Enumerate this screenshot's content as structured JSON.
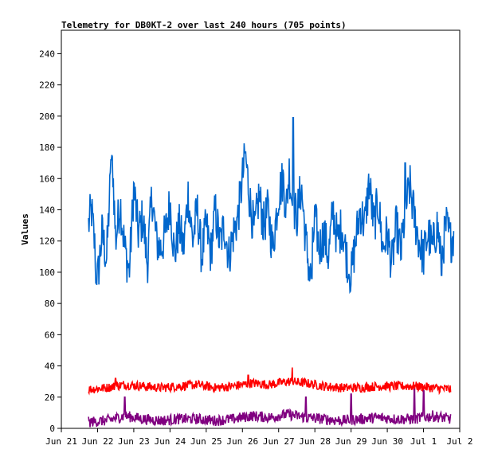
{
  "chart_data": {
    "type": "line",
    "title": "Telemetry for DB0KT-2 over last 240 hours (705 points)",
    "xlabel": "",
    "ylabel": "Values",
    "ylim": [
      0,
      255
    ],
    "xlim": [
      "Jun 21",
      "Jul 2"
    ],
    "x_ticks": [
      "Jun 21",
      "Jun 22",
      "Jun 23",
      "Jun 24",
      "Jun 25",
      "Jun 26",
      "Jun 27",
      "Jun 28",
      "Jun 29",
      "Jun 30",
      "Jul 1",
      "Jul 2"
    ],
    "y_ticks": [
      0,
      20,
      40,
      60,
      80,
      100,
      120,
      140,
      160,
      180,
      200,
      220,
      240
    ],
    "grid": false,
    "legend": "none",
    "series": [
      {
        "color": "#0066cc",
        "points": [
          [
            "Jun 21 18:00",
            130
          ],
          [
            "Jun 21 20:00",
            140
          ],
          [
            "Jun 22 00:00",
            95
          ],
          [
            "Jun 22 03:00",
            125
          ],
          [
            "Jun 22 06:00",
            108
          ],
          [
            "Jun 22 08:00",
            150
          ],
          [
            "Jun 22 10:00",
            170
          ],
          [
            "Jun 22 12:00",
            120
          ],
          [
            "Jun 22 15:00",
            145
          ],
          [
            "Jun 22 18:00",
            115
          ],
          [
            "Jun 22 21:00",
            100
          ],
          [
            "Jun 23 00:00",
            155
          ],
          [
            "Jun 23 03:00",
            125
          ],
          [
            "Jun 23 06:00",
            135
          ],
          [
            "Jun 23 09:00",
            105
          ],
          [
            "Jun 23 12:00",
            150
          ],
          [
            "Jun 23 15:00",
            120
          ],
          [
            "Jun 23 18:00",
            115
          ],
          [
            "Jun 23 21:00",
            125
          ],
          [
            "Jun 24 00:00",
            145
          ],
          [
            "Jun 24 03:00",
            110
          ],
          [
            "Jun 24 06:00",
            130
          ],
          [
            "Jun 24 09:00",
            115
          ],
          [
            "Jun 24 12:00",
            150
          ],
          [
            "Jun 24 15:00",
            120
          ],
          [
            "Jun 24 18:00",
            140
          ],
          [
            "Jun 24 21:00",
            110
          ],
          [
            "Jun 25 00:00",
            130
          ],
          [
            "Jun 25 03:00",
            112
          ],
          [
            "Jun 25 06:00",
            140
          ],
          [
            "Jun 25 09:00",
            118
          ],
          [
            "Jun 25 12:00",
            130
          ],
          [
            "Jun 25 15:00",
            110
          ],
          [
            "Jun 25 18:00",
            125
          ],
          [
            "Jun 25 21:00",
            135
          ],
          [
            "Jun 26 00:00",
            160
          ],
          [
            "Jun 26 02:00",
            175
          ],
          [
            "Jun 26 05:00",
            145
          ],
          [
            "Jun 26 08:00",
            125
          ],
          [
            "Jun 26 11:00",
            150
          ],
          [
            "Jun 26 14:00",
            130
          ],
          [
            "Jun 26 17:00",
            140
          ],
          [
            "Jun 26 20:00",
            115
          ],
          [
            "Jun 27 00:00",
            150
          ],
          [
            "Jun 27 03:00",
            160
          ],
          [
            "Jun 27 05:00",
            140
          ],
          [
            "Jun 27 07:00",
            165
          ],
          [
            "Jun 27 09:00",
            145
          ],
          [
            "Jun 27 12:00",
            135
          ],
          [
            "Jun 27 15:00",
            155
          ],
          [
            "Jun 27 18:00",
            120
          ],
          [
            "Jun 27 21:00",
            95
          ],
          [
            "Jun 28 00:00",
            135
          ],
          [
            "Jun 28 03:00",
            115
          ],
          [
            "Jun 28 06:00",
            125
          ],
          [
            "Jun 28 09:00",
            110
          ],
          [
            "Jun 28 12:00",
            140
          ],
          [
            "Jun 28 15:00",
            120
          ],
          [
            "Jun 28 18:00",
            130
          ],
          [
            "Jun 28 21:00",
            110
          ],
          [
            "Jun 29 00:00",
            97
          ],
          [
            "Jun 29 03:00",
            120
          ],
          [
            "Jun 29 06:00",
            140
          ],
          [
            "Jun 29 09:00",
            130
          ],
          [
            "Jun 29 12:00",
            158
          ],
          [
            "Jun 29 15:00",
            130
          ],
          [
            "Jun 29 18:00",
            145
          ],
          [
            "Jun 29 21:00",
            115
          ],
          [
            "Jun 30 00:00",
            125
          ],
          [
            "Jun 30 03:00",
            105
          ],
          [
            "Jun 30 06:00",
            130
          ],
          [
            "Jun 30 09:00",
            112
          ],
          [
            "Jun 30 12:00",
            140
          ],
          [
            "Jun 30 15:00",
            155
          ],
          [
            "Jun 30 18:00",
            135
          ],
          [
            "Jun 30 21:00",
            120
          ],
          [
            "Jul 1 00:00",
            110
          ],
          [
            "Jul 1 03:00",
            125
          ],
          [
            "Jul 1 06:00",
            115
          ],
          [
            "Jul 1 09:00",
            130
          ],
          [
            "Jul 1 12:00",
            110
          ],
          [
            "Jul 1 15:00",
            130
          ],
          [
            "Jul 1 18:00",
            120
          ],
          [
            "Jul 1 20:00",
            125
          ]
        ],
        "peaks": [
          [
            "Jun 21 23:00",
            93
          ],
          [
            "Jun 22 09:00",
            172
          ],
          [
            "Jun 26 02:00",
            177
          ],
          [
            "Jun 27 09:30",
            199
          ],
          [
            "Jun 27 22:00",
            96
          ],
          [
            "Jun 28 22:00",
            96
          ],
          [
            "Jun 30 12:00",
            170
          ],
          [
            "Jul 1 12:00",
            98
          ]
        ]
      },
      {
        "color": "#ff0000",
        "points": [
          [
            "Jun 21 18:00",
            25
          ],
          [
            "Jun 22 06:00",
            26
          ],
          [
            "Jun 22 18:00",
            28
          ],
          [
            "Jun 23 06:00",
            27
          ],
          [
            "Jun 23 18:00",
            26
          ],
          [
            "Jun 24 06:00",
            27
          ],
          [
            "Jun 24 18:00",
            28
          ],
          [
            "Jun 25 06:00",
            26
          ],
          [
            "Jun 25 18:00",
            27
          ],
          [
            "Jun 26 06:00",
            29
          ],
          [
            "Jun 26 18:00",
            28
          ],
          [
            "Jun 27 06:00",
            30
          ],
          [
            "Jun 27 18:00",
            29
          ],
          [
            "Jun 28 06:00",
            27
          ],
          [
            "Jun 28 18:00",
            26
          ],
          [
            "Jun 29 06:00",
            26
          ],
          [
            "Jun 29 18:00",
            27
          ],
          [
            "Jun 30 06:00",
            27
          ],
          [
            "Jun 30 18:00",
            27
          ],
          [
            "Jul 1 06:00",
            26
          ],
          [
            "Jul 1 18:00",
            25
          ]
        ],
        "peaks": [
          [
            "Jun 27 09:00",
            39
          ],
          [
            "Jun 22 12:00",
            32
          ],
          [
            "Jun 26 04:00",
            34
          ]
        ]
      },
      {
        "color": "#800080",
        "points": [
          [
            "Jun 21 18:00",
            4
          ],
          [
            "Jun 22 06:00",
            5
          ],
          [
            "Jun 22 18:00",
            8
          ],
          [
            "Jun 23 06:00",
            6
          ],
          [
            "Jun 23 18:00",
            5
          ],
          [
            "Jun 24 06:00",
            6
          ],
          [
            "Jun 24 18:00",
            6
          ],
          [
            "Jun 25 06:00",
            5
          ],
          [
            "Jun 25 18:00",
            6
          ],
          [
            "Jun 26 06:00",
            8
          ],
          [
            "Jun 26 18:00",
            7
          ],
          [
            "Jun 27 06:00",
            9
          ],
          [
            "Jun 27 18:00",
            7
          ],
          [
            "Jun 28 06:00",
            6
          ],
          [
            "Jun 28 18:00",
            5
          ],
          [
            "Jun 29 06:00",
            6
          ],
          [
            "Jun 29 18:00",
            7
          ],
          [
            "Jun 30 06:00",
            6
          ],
          [
            "Jun 30 18:00",
            6
          ],
          [
            "Jul 1 06:00",
            8
          ],
          [
            "Jul 1 18:00",
            6
          ]
        ],
        "peaks": [
          [
            "Jun 22 18:00",
            20
          ],
          [
            "Jun 27 18:00",
            20
          ],
          [
            "Jun 29 00:00",
            22
          ],
          [
            "Jun 30 18:00",
            25
          ],
          [
            "Jul 1 00:00",
            24
          ]
        ]
      }
    ]
  }
}
